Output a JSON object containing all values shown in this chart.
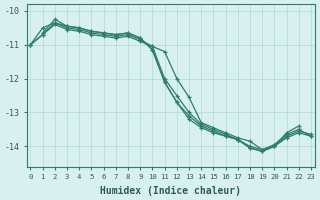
{
  "xlabel": "Humidex (Indice chaleur)",
  "ylabel": "",
  "bg_color": "#d8f0f0",
  "line_color": "#2d7d6e",
  "grid_color": "#b0d8d8",
  "xlim": [
    0,
    23
  ],
  "ylim": [
    -14.6,
    -9.8
  ],
  "xticks": [
    0,
    1,
    2,
    3,
    4,
    5,
    6,
    7,
    8,
    9,
    10,
    11,
    12,
    13,
    14,
    15,
    16,
    17,
    18,
    19,
    20,
    21,
    22,
    23
  ],
  "yticks": [
    -10,
    -11,
    -12,
    -13,
    -14
  ],
  "series": [
    {
      "x": [
        0,
        1,
        2,
        3,
        4,
        5,
        6,
        7,
        8,
        9,
        10,
        11,
        12,
        13,
        14,
        15,
        16,
        17,
        18,
        19,
        20,
        21,
        22
      ],
      "y": [
        -11.0,
        -10.7,
        -10.4,
        -10.55,
        -10.6,
        -10.7,
        -10.75,
        -10.8,
        -10.75,
        -10.9,
        -11.05,
        -11.2,
        -12.0,
        -12.55,
        -13.3,
        -13.45,
        -13.6,
        -13.75,
        -13.85,
        -14.1,
        -14.0,
        -13.6,
        -13.4
      ]
    },
    {
      "x": [
        0,
        1,
        2,
        3,
        4,
        5,
        6,
        7,
        8,
        9,
        10,
        11,
        12,
        13,
        14,
        15,
        16,
        17,
        18,
        19,
        20,
        21,
        22,
        23
      ],
      "y": [
        -11.0,
        -10.5,
        -10.35,
        -10.45,
        -10.5,
        -10.6,
        -10.65,
        -10.7,
        -10.65,
        -10.8,
        -11.15,
        -12.1,
        -12.7,
        -13.1,
        -13.4,
        -13.55,
        -13.7,
        -13.8,
        -14.05,
        -14.15,
        -14.0,
        -13.7,
        -13.55,
        -13.65
      ]
    },
    {
      "x": [
        1,
        2,
        3,
        4,
        5,
        6,
        7,
        8,
        9,
        10,
        11,
        12,
        13,
        14,
        15,
        16,
        17,
        18,
        19,
        20,
        21,
        22,
        23
      ],
      "y": [
        -10.65,
        -10.25,
        -10.45,
        -10.5,
        -10.6,
        -10.65,
        -10.7,
        -10.65,
        -10.8,
        -11.15,
        -12.1,
        -12.7,
        -13.2,
        -13.45,
        -13.6,
        -13.7,
        -13.8,
        -14.05,
        -14.15,
        -14.0,
        -13.75,
        -13.6,
        -13.7
      ]
    },
    {
      "x": [
        0,
        1,
        2,
        3,
        4,
        5,
        6,
        7,
        8,
        9,
        10,
        11,
        12,
        13,
        14,
        15,
        16,
        17,
        18,
        19,
        20,
        21,
        22,
        23
      ],
      "y": [
        -11.0,
        -10.7,
        -10.35,
        -10.5,
        -10.55,
        -10.65,
        -10.7,
        -10.75,
        -10.7,
        -10.85,
        -11.05,
        -12.0,
        -12.5,
        -13.0,
        -13.35,
        -13.5,
        -13.65,
        -13.8,
        -14.0,
        -14.1,
        -13.95,
        -13.65,
        -13.5,
        -13.7
      ]
    }
  ]
}
